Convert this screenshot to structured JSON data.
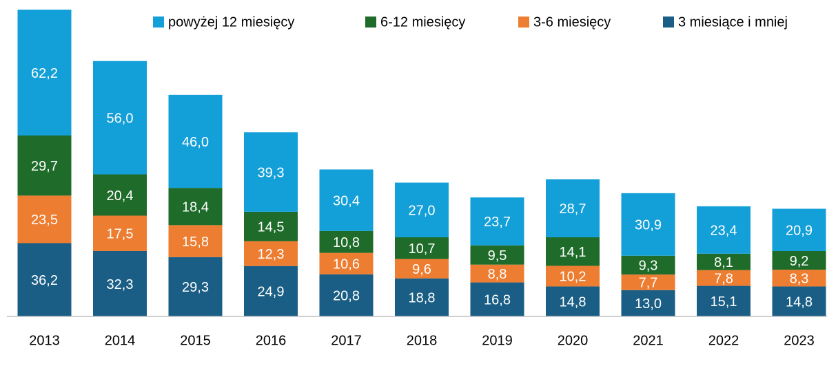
{
  "chart_data": {
    "type": "stacked-bar",
    "categories": [
      "2013",
      "2014",
      "2015",
      "2016",
      "2017",
      "2018",
      "2019",
      "2020",
      "2021",
      "2022",
      "2023"
    ],
    "series": [
      {
        "name": "3 miesiące i mniej",
        "color": "#1a5e85",
        "values": [
          36.2,
          32.3,
          29.3,
          24.9,
          20.8,
          18.8,
          16.8,
          14.8,
          13.0,
          15.1,
          14.8
        ],
        "value_labels": [
          "36,2",
          "32,3",
          "29,3",
          "24,9",
          "20,8",
          "18,8",
          "16,8",
          "14,8",
          "13,0",
          "15,1",
          "14,8"
        ]
      },
      {
        "name": "3-6 miesięcy",
        "color": "#ed7d31",
        "values": [
          23.5,
          17.5,
          15.8,
          12.3,
          10.6,
          9.6,
          8.8,
          10.2,
          7.7,
          7.8,
          8.3
        ],
        "value_labels": [
          "23,5",
          "17,5",
          "15,8",
          "12,3",
          "10,6",
          "9,6",
          "8,8",
          "10,2",
          "7,7",
          "7,8",
          "8,3"
        ]
      },
      {
        "name": "6-12 miesięcy",
        "color": "#1e6b2a",
        "values": [
          29.7,
          20.4,
          18.4,
          14.5,
          10.8,
          10.7,
          9.5,
          14.1,
          9.3,
          8.1,
          9.2
        ],
        "value_labels": [
          "29,7",
          "20,4",
          "18,4",
          "14,5",
          "10,8",
          "10,7",
          "9,5",
          "14,1",
          "9,3",
          "8,1",
          "9,2"
        ]
      },
      {
        "name": "powyżej 12 miesięcy",
        "color": "#139fd8",
        "values": [
          62.2,
          56.0,
          46.0,
          39.3,
          30.4,
          27.0,
          23.7,
          28.7,
          30.9,
          23.4,
          20.9
        ],
        "value_labels": [
          "62,2",
          "56,0",
          "46,0",
          "39,3",
          "30,4",
          "27,0",
          "23,7",
          "28,7",
          "30,9",
          "23,4",
          "20,9"
        ]
      }
    ],
    "legend": "top-right"
  }
}
